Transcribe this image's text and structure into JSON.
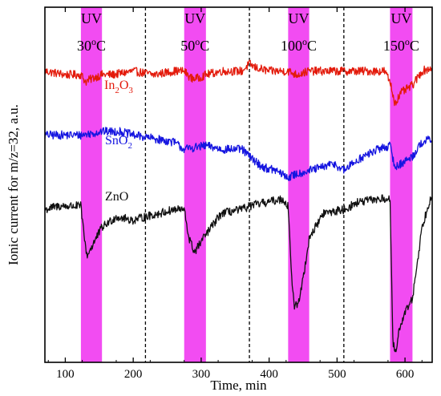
{
  "chart_data": {
    "type": "line",
    "xlabel": "Time, min",
    "ylabel": "Ionic current for m/z=32, a.u.",
    "xlim": [
      70,
      640
    ],
    "xticks": [
      100,
      200,
      300,
      400,
      500,
      600
    ],
    "yticks_labeled": false,
    "grid": false,
    "uv_bands": [
      {
        "x": [
          123,
          154
        ],
        "label": "UV",
        "temp": "30",
        "temp_unit": "oC"
      },
      {
        "x": [
          275,
          307
        ],
        "label": "UV",
        "temp": "50",
        "temp_unit": "oC"
      },
      {
        "x": [
          428,
          459
        ],
        "label": "UV",
        "temp": "100",
        "temp_unit": "oC"
      },
      {
        "x": [
          578,
          611
        ],
        "label": "UV",
        "temp": "150",
        "temp_unit": "oC"
      }
    ],
    "dividers_x": [
      218,
      371,
      510
    ],
    "band_color": "#f24cf2",
    "series": [
      {
        "name": "In2O3",
        "label_main": "In",
        "label_sub1": "2",
        "label_mid": "O",
        "label_sub2": "3",
        "color": "#e31a0b",
        "x": [
          70,
          100,
          123,
          130,
          140,
          154,
          170,
          200,
          230,
          260,
          275,
          285,
          295,
          307,
          330,
          360,
          371,
          380,
          400,
          428,
          440,
          459,
          480,
          510,
          540,
          570,
          578,
          585,
          595,
          611,
          625,
          640
        ],
        "y": [
          0.82,
          0.81,
          0.81,
          0.79,
          0.8,
          0.81,
          0.81,
          0.82,
          0.81,
          0.82,
          0.82,
          0.8,
          0.8,
          0.81,
          0.82,
          0.82,
          0.84,
          0.83,
          0.82,
          0.82,
          0.81,
          0.82,
          0.82,
          0.82,
          0.82,
          0.82,
          0.79,
          0.73,
          0.76,
          0.78,
          0.82,
          0.83
        ]
      },
      {
        "name": "SnO2",
        "label_main": "Sn",
        "label_mid": "O",
        "label_sub1": "2",
        "color": "#1515e0",
        "x": [
          70,
          100,
          123,
          140,
          154,
          180,
          200,
          230,
          260,
          275,
          290,
          307,
          330,
          360,
          371,
          390,
          410,
          428,
          440,
          459,
          480,
          495,
          510,
          530,
          560,
          578,
          585,
          595,
          611,
          625,
          640
        ],
        "y": [
          0.64,
          0.64,
          0.64,
          0.645,
          0.65,
          0.65,
          0.64,
          0.63,
          0.62,
          0.6,
          0.605,
          0.61,
          0.6,
          0.6,
          0.58,
          0.55,
          0.54,
          0.52,
          0.53,
          0.54,
          0.55,
          0.56,
          0.54,
          0.57,
          0.6,
          0.61,
          0.55,
          0.56,
          0.58,
          0.62,
          0.63
        ]
      },
      {
        "name": "ZnO",
        "color": "#111111",
        "x": [
          70,
          90,
          110,
          123,
          128,
          132,
          140,
          154,
          175,
          200,
          218,
          240,
          260,
          275,
          282,
          290,
          307,
          330,
          360,
          371,
          395,
          420,
          428,
          433,
          437,
          445,
          452,
          459,
          480,
          510,
          530,
          560,
          578,
          582,
          587,
          592,
          600,
          611,
          625,
          640
        ],
        "y": [
          0.43,
          0.44,
          0.44,
          0.44,
          0.35,
          0.3,
          0.33,
          0.38,
          0.41,
          0.4,
          0.41,
          0.42,
          0.43,
          0.43,
          0.35,
          0.31,
          0.36,
          0.42,
          0.43,
          0.44,
          0.45,
          0.46,
          0.44,
          0.25,
          0.15,
          0.18,
          0.26,
          0.35,
          0.42,
          0.43,
          0.45,
          0.46,
          0.46,
          0.06,
          0.02,
          0.1,
          0.14,
          0.18,
          0.38,
          0.48
        ]
      }
    ]
  }
}
